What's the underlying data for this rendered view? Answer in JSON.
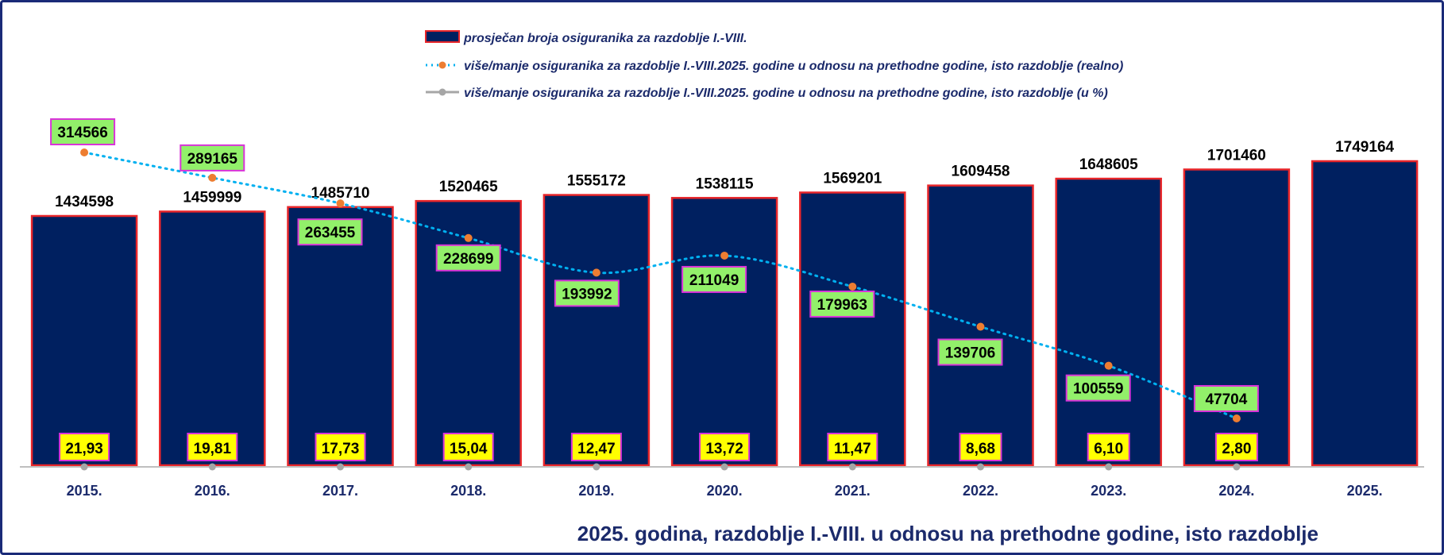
{
  "chart_data": {
    "type": "bar",
    "categories": [
      "2015.",
      "2016.",
      "2017.",
      "2018.",
      "2019.",
      "2020.",
      "2021.",
      "2022.",
      "2023.",
      "2024.",
      "2025."
    ],
    "bar_values": [
      1434598,
      1459999,
      1485710,
      1520465,
      1555172,
      1538115,
      1569201,
      1609458,
      1648605,
      1701460,
      1749164
    ],
    "bar_labels": [
      "1434598",
      "1459999",
      "1485710",
      "1520465",
      "1555172",
      "1538115",
      "1569201",
      "1609458",
      "1648605",
      "1701460",
      "1749164"
    ],
    "line_values": [
      314566,
      289165,
      263455,
      228699,
      193992,
      211049,
      179963,
      139706,
      100559,
      47704
    ],
    "line_labels": [
      "314566",
      "289165",
      "263455",
      "228699",
      "193992",
      "211049",
      "179963",
      "139706",
      "100559",
      "47704"
    ],
    "pct_values": [
      21.93,
      19.81,
      17.73,
      15.04,
      12.47,
      13.72,
      11.47,
      8.68,
      6.1,
      2.8
    ],
    "pct_labels": [
      "21,93",
      "19,81",
      "17,73",
      "15,04",
      "12,47",
      "13,72",
      "11,47",
      "8,68",
      "6,10",
      "2,80"
    ],
    "legend": [
      "prosječan broja osiguranika za razdoblje I.-VIII.",
      "više/manje osiguranika za razdoblje I.-VIII.2025. godine u odnosu na prethodne godine, isto razdoblje (realno)",
      "više/manje osiguranika za razdoblje I.-VIII.2025. godine u odnosu na prethodne godine, isto razdoblje (u %)"
    ],
    "subtitle": "2025. godina, razdoblje I.-VIII. u odnosu na prethodne godine, isto razdoblje",
    "legend_position": "top-center",
    "grid": false,
    "colors": {
      "bar_fill": "#002060",
      "bar_border": "#e8262a",
      "line": "#00b0f0",
      "line_marker": "#ed7d31",
      "pct_marker": "#a6a6a6",
      "label_green": "#92f06a",
      "label_yellow": "#ffff00",
      "label_border": "#d933d9"
    }
  }
}
